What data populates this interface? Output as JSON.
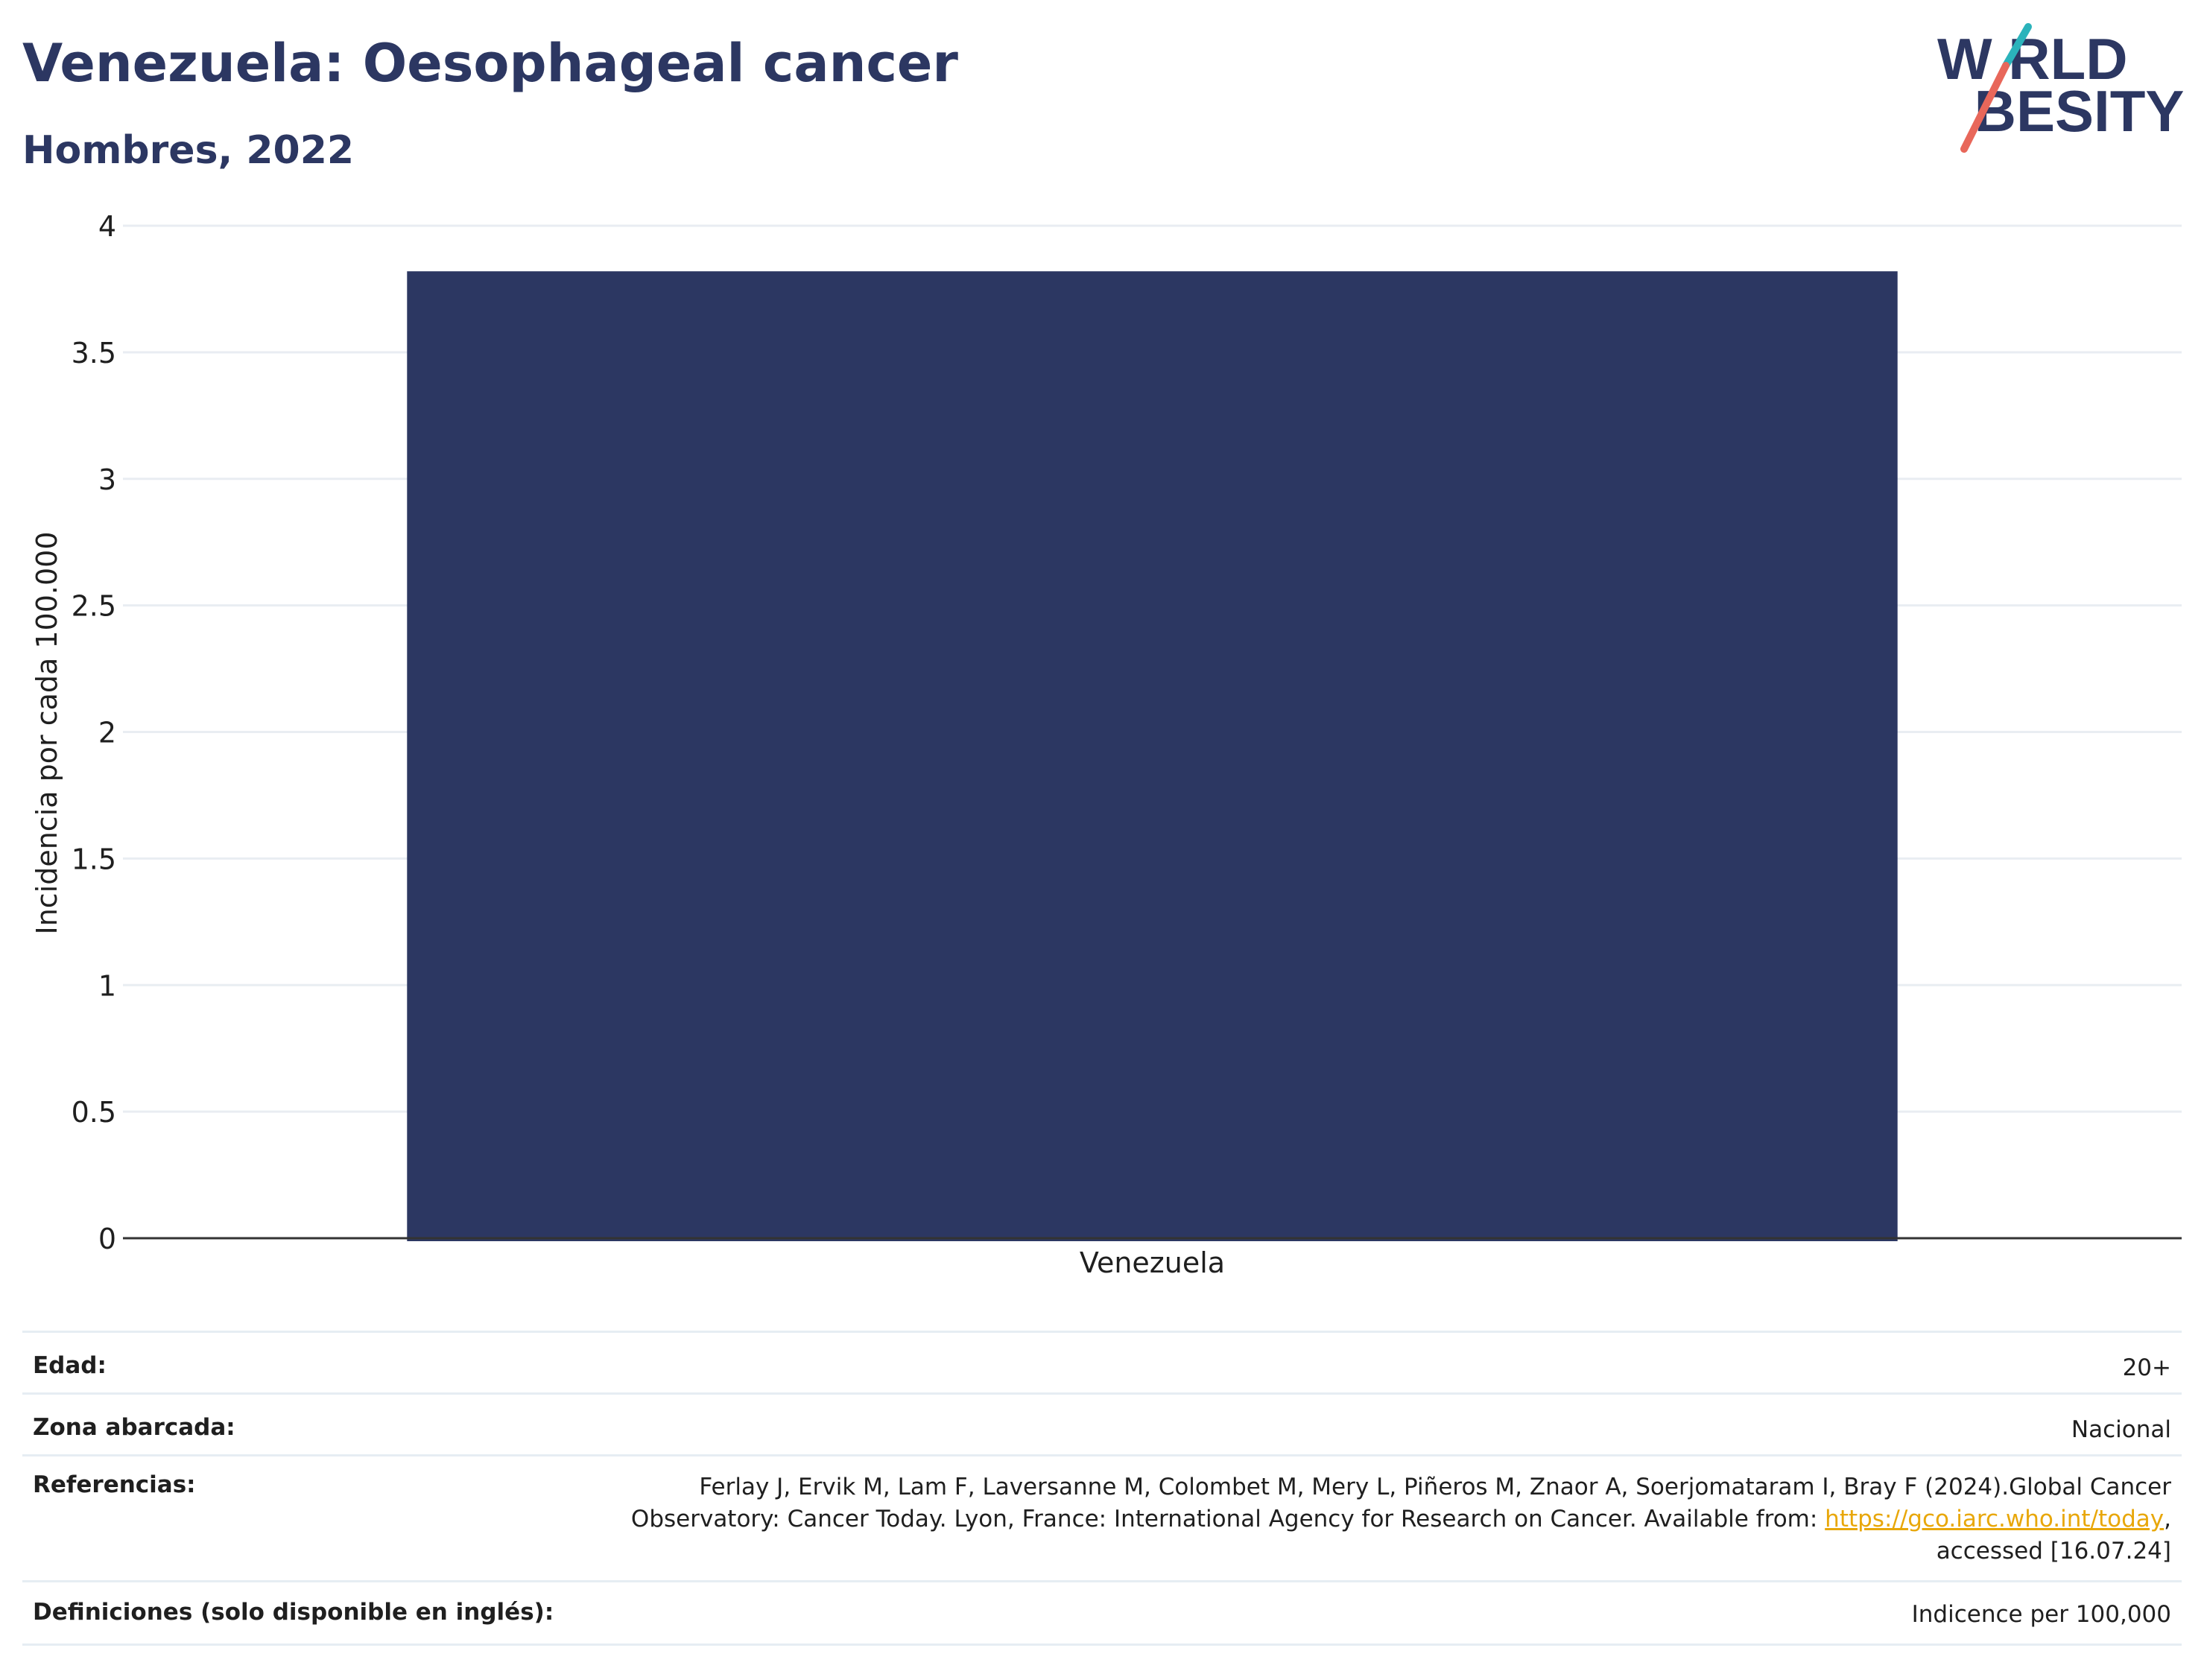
{
  "header": {
    "title": "Venezuela: Oesophageal cancer",
    "subtitle": "Hombres, 2022"
  },
  "logo": {
    "line1": "W RLD",
    "line2": " BESITY",
    "text": "WORLD OBESITY",
    "colors": {
      "text": "#2c3762",
      "slash_teal": "#2bb3bb",
      "slash_coral": "#e8675a"
    }
  },
  "chart_data": {
    "type": "bar",
    "categories": [
      "Venezuela"
    ],
    "values": [
      3.82
    ],
    "ylabel": "Incidencia por cada 100.000",
    "xlabel": "",
    "ylim": [
      0,
      4
    ],
    "yticks": [
      "0",
      "0.5",
      "1",
      "1.5",
      "2",
      "2.5",
      "3",
      "3.5",
      "4"
    ],
    "grid": true,
    "bar_color": "#2c3762"
  },
  "info": {
    "edad_label": "Edad:",
    "edad_value": "20+",
    "zona_label": "Zona abarcada:",
    "zona_value": "Nacional",
    "ref_label": "Referencias:",
    "ref_line1": "Ferlay J, Ervik M, Lam F, Laversanne M, Colombet M, Mery L, Piñeros M, Znaor A, Soerjomataram I, Bray F (2024).Global Cancer",
    "ref_line2_pre": "Observatory: Cancer Today. Lyon, France: International Agency for Research on Cancer. Available from: ",
    "ref_link": "https://gco.iarc.who.int/today",
    "ref_line2_post": ",",
    "ref_line3": "accessed [16.07.24]",
    "def_label": "Definiciones (solo disponible en inglés):",
    "def_value": "Indicence per 100,000"
  }
}
